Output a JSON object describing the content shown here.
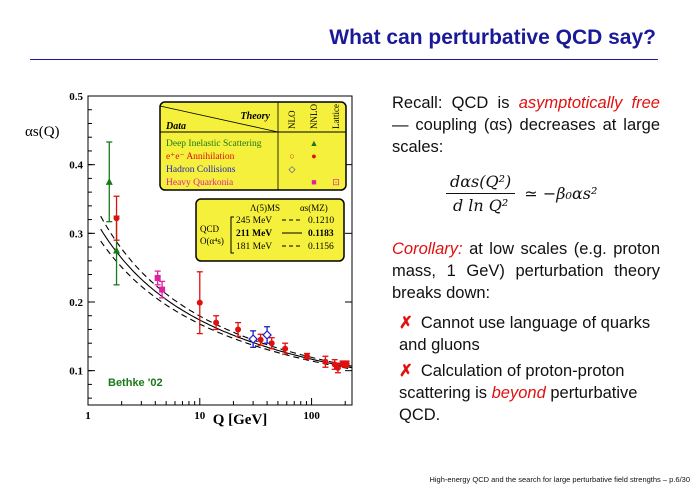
{
  "slide": {
    "title": "What can perturbative QCD say?",
    "footer": "High-energy QCD and the search for large perturbative field strengths – p.6/30"
  },
  "text": {
    "recall_prefix": "Recall:  QCD is ",
    "recall_em": "asymptotically free",
    "recall_suffix": " — coupling (αs) decreases at large scales:",
    "formula_num": "dαs(Q²)",
    "formula_den": "d ln Q²",
    "formula_rhs": "≃ −β₀αs²",
    "corollary_label": "Corollary:",
    "corollary_text": " at low scales (e.g. proton mass, 1 GeV) perturbation theory breaks down:",
    "bullet1": "Cannot use language of quarks and gluons",
    "bullet2_prefix": "Calculation of proton-proton scattering is ",
    "bullet2_em": "beyond",
    "bullet2_suffix": " perturbative QCD.",
    "cross": "✗"
  },
  "chart_data": {
    "type": "scatter",
    "xlabel": "Q [GeV]",
    "ylabel": "αs(Q)",
    "xscale": "log",
    "xlim": [
      1,
      230
    ],
    "ylim": [
      0.05,
      0.5
    ],
    "x_ticks": [
      "1",
      "10",
      "100"
    ],
    "y_ticks": [
      "0.1",
      "0.2",
      "0.3",
      "0.4",
      "0.5"
    ],
    "credit": "Bethke '02",
    "legend_box": {
      "header_theory": "Theory",
      "header_data": "Data",
      "columns": [
        "NLO",
        "NNLO",
        "Lattice"
      ],
      "rows": [
        {
          "label": "Deep Inelastic Scattering",
          "color": "#1a7a1a",
          "marks": [
            "",
            "▲",
            ""
          ]
        },
        {
          "label": "e⁺e⁻ Annihilation",
          "color": "#e01010",
          "marks": [
            "○",
            "●",
            ""
          ]
        },
        {
          "label": "Hadron Collisions",
          "color": "#2020c0",
          "marks": [
            "◇",
            "",
            ""
          ]
        },
        {
          "label": "Heavy Quarkonia",
          "color": "#e020a0",
          "marks": [
            "",
            "■",
            "⊡"
          ]
        }
      ]
    },
    "curves_box": {
      "col1": "Λ(5)MS",
      "col2": "αs(MZ)",
      "qcd": "QCD",
      "order": "O(α⁴s)",
      "rows": [
        {
          "lambda": "245 MeV",
          "alpha": "0.1210",
          "style": "dashed"
        },
        {
          "lambda": "211 MeV",
          "alpha": "0.1183",
          "style": "solid"
        },
        {
          "lambda": "181 MeV",
          "alpha": "0.1156",
          "style": "dashed"
        }
      ]
    },
    "series": [
      {
        "name": "Deep Inelastic Scattering",
        "color": "#1a7a1a",
        "shape": "triangle",
        "points": [
          {
            "x": 1.55,
            "y": 0.375,
            "err": 0.058
          },
          {
            "x": 1.8,
            "y": 0.275,
            "err": 0.05
          }
        ]
      },
      {
        "name": "e+e- Annihilation",
        "color": "#e01010",
        "shape": "circle",
        "points": [
          {
            "x": 1.8,
            "y": 0.322,
            "err": 0.032
          },
          {
            "x": 10.0,
            "y": 0.199,
            "err": 0.045
          },
          {
            "x": 14.0,
            "y": 0.17,
            "err": 0.01
          },
          {
            "x": 22.0,
            "y": 0.16,
            "err": 0.01
          },
          {
            "x": 35.0,
            "y": 0.145,
            "err": 0.008
          },
          {
            "x": 44.0,
            "y": 0.14,
            "err": 0.008
          },
          {
            "x": 58.0,
            "y": 0.132,
            "err": 0.008
          },
          {
            "x": 91.0,
            "y": 0.121,
            "err": 0.004
          },
          {
            "x": 133.0,
            "y": 0.113,
            "err": 0.008
          },
          {
            "x": 161.0,
            "y": 0.109,
            "err": 0.007
          },
          {
            "x": 172.0,
            "y": 0.104,
            "err": 0.007
          },
          {
            "x": 189.0,
            "y": 0.11,
            "err": 0.004
          },
          {
            "x": 200.0,
            "y": 0.109,
            "err": 0.004
          },
          {
            "x": 206.0,
            "y": 0.11,
            "err": 0.004
          }
        ]
      },
      {
        "name": "Hadron Collisions",
        "color": "#2020c0",
        "shape": "diamond",
        "points": [
          {
            "x": 30.0,
            "y": 0.146,
            "err": 0.012
          },
          {
            "x": 40.0,
            "y": 0.152,
            "err": 0.012
          }
        ]
      },
      {
        "name": "Heavy Quarkonia",
        "color": "#e020a0",
        "shape": "square",
        "points": [
          {
            "x": 4.2,
            "y": 0.235,
            "err": 0.01
          },
          {
            "x": 4.6,
            "y": 0.218,
            "err": 0.012
          }
        ]
      }
    ],
    "curves": [
      {
        "name": "245 MeV",
        "alpha_mz": 0.121,
        "style": "dashed"
      },
      {
        "name": "211 MeV",
        "alpha_mz": 0.1183,
        "style": "solid"
      },
      {
        "name": "181 MeV",
        "alpha_mz": 0.1156,
        "style": "dashed"
      }
    ]
  }
}
